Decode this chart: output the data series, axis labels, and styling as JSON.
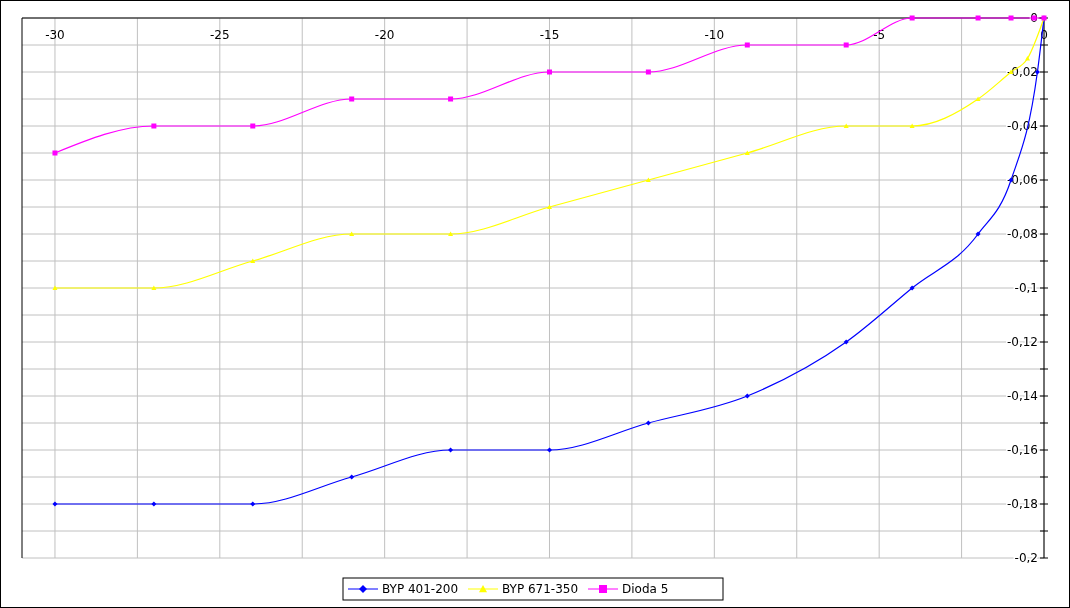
{
  "chart_data": {
    "type": "line",
    "xlim": [
      -31,
      0
    ],
    "ylim": [
      -0.2,
      0
    ],
    "xticks": [
      -30,
      {
        "value": -27.5,
        "label": null
      },
      -25,
      {
        "value": -22.5,
        "label": null
      },
      -20,
      {
        "value": -17.5,
        "label": null
      },
      -15,
      {
        "value": -12.5,
        "label": null
      },
      -10,
      {
        "value": -7.5,
        "label": null
      },
      -5,
      {
        "value": -2.5,
        "label": null
      },
      0
    ],
    "yticks": [
      0,
      {
        "value": -0.01,
        "label": null
      },
      {
        "value": -0.02,
        "label": "-0,02"
      },
      {
        "value": -0.03,
        "label": null
      },
      {
        "value": -0.04,
        "label": "-0,04"
      },
      {
        "value": -0.05,
        "label": null
      },
      {
        "value": -0.06,
        "label": "-0,06"
      },
      {
        "value": -0.07,
        "label": null
      },
      {
        "value": -0.08,
        "label": "-0,08"
      },
      {
        "value": -0.09,
        "label": null
      },
      {
        "value": -0.1,
        "label": "-0,1"
      },
      {
        "value": -0.11,
        "label": null
      },
      {
        "value": -0.12,
        "label": "-0,12"
      },
      {
        "value": -0.13,
        "label": null
      },
      {
        "value": -0.14,
        "label": "-0,14"
      },
      {
        "value": -0.15,
        "label": null
      },
      {
        "value": -0.16,
        "label": "-0,16"
      },
      {
        "value": -0.17,
        "label": null
      },
      {
        "value": -0.18,
        "label": "-0,18"
      },
      {
        "value": -0.19,
        "label": null
      },
      {
        "value": -0.2,
        "label": "-0,2"
      }
    ],
    "grid": true,
    "legend": "bottom",
    "series": [
      {
        "name": "BYP 401-200",
        "color": "#0000ff",
        "marker": "diamond",
        "x": [
          -30,
          -27,
          -24,
          -21,
          -18,
          -15,
          -12,
          -9,
          -6,
          -4,
          -2,
          -1,
          -0.2,
          0
        ],
        "values": [
          -0.18,
          -0.18,
          -0.18,
          -0.17,
          -0.16,
          -0.16,
          -0.15,
          -0.14,
          -0.12,
          -0.1,
          -0.08,
          -0.06,
          -0.02,
          0
        ]
      },
      {
        "name": "BYP 671-350",
        "color": "#ffff00",
        "marker": "triangle",
        "x": [
          -30,
          -27,
          -24,
          -21,
          -18,
          -15,
          -12,
          -9,
          -6,
          -4,
          -2,
          -1,
          -0.5,
          0
        ],
        "values": [
          -0.1,
          -0.1,
          -0.09,
          -0.08,
          -0.08,
          -0.07,
          -0.06,
          -0.05,
          -0.04,
          -0.04,
          -0.03,
          -0.02,
          -0.015,
          0
        ]
      },
      {
        "name": "Dioda 5",
        "color": "#ff00ff",
        "marker": "square",
        "x": [
          -30,
          -27,
          -24,
          -21,
          -18,
          -15,
          -12,
          -9,
          -6,
          -4,
          -2,
          -1,
          -0.3,
          0
        ],
        "values": [
          -0.05,
          -0.04,
          -0.04,
          -0.03,
          -0.03,
          -0.02,
          -0.02,
          -0.01,
          -0.01,
          0,
          0,
          0,
          0,
          0
        ]
      }
    ]
  }
}
